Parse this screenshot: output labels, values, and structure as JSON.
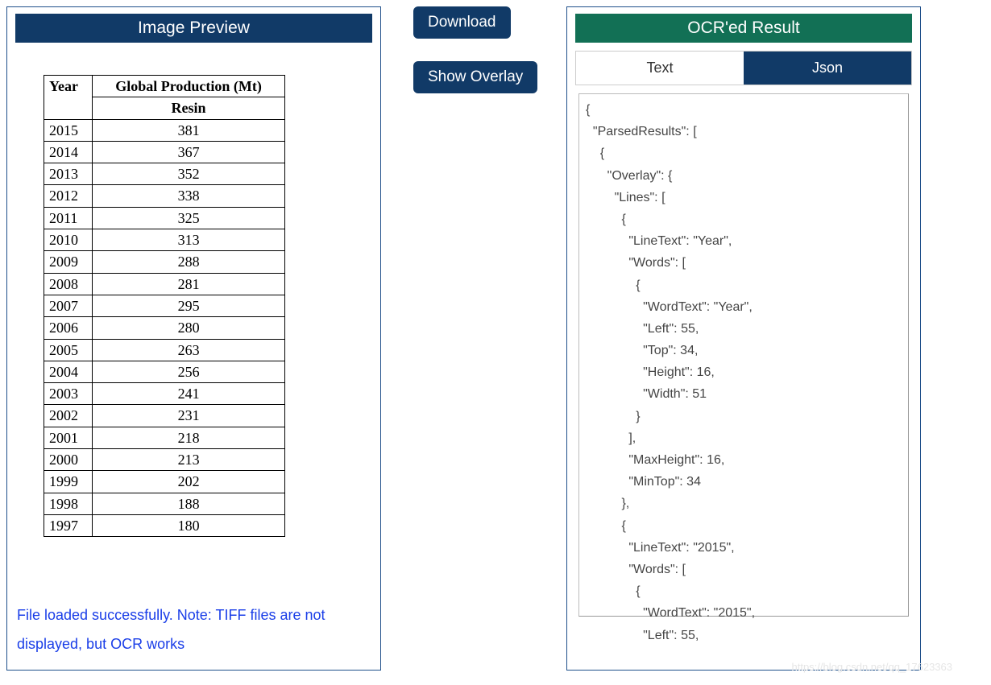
{
  "colors": {
    "panel_border": "#1e4f8a",
    "banner_blue": "#113a67",
    "banner_green": "#127055",
    "button_bg": "#113a67",
    "button_text": "#ffffff",
    "status_text": "#1a3ee8",
    "tab_active_bg": "#113a67",
    "tab_inactive_bg": "#ffffff",
    "json_text": "#454545",
    "watermark": "#e6e6e6"
  },
  "left": {
    "title": "Image Preview",
    "table": {
      "type": "table",
      "header_year": "Year",
      "header_prod": "Global Production (Mt)",
      "subheader": "Resin",
      "rows": [
        [
          "2015",
          "381"
        ],
        [
          "2014",
          "367"
        ],
        [
          "2013",
          "352"
        ],
        [
          "2012",
          "338"
        ],
        [
          "2011",
          "325"
        ],
        [
          "2010",
          "313"
        ],
        [
          "2009",
          "288"
        ],
        [
          "2008",
          "281"
        ],
        [
          "2007",
          "295"
        ],
        [
          "2006",
          "280"
        ],
        [
          "2005",
          "263"
        ],
        [
          "2004",
          "256"
        ],
        [
          "2003",
          "241"
        ],
        [
          "2002",
          "231"
        ],
        [
          "2001",
          "218"
        ],
        [
          "2000",
          "213"
        ],
        [
          "1999",
          "202"
        ],
        [
          "1998",
          "188"
        ],
        [
          "1997",
          "180"
        ]
      ]
    },
    "status": "File loaded successfully. Note: TIFF files are not displayed, but OCR works"
  },
  "mid": {
    "download": "Download",
    "overlay": "Show Overlay"
  },
  "right": {
    "title": "OCR'ed Result",
    "tabs": {
      "text": "Text",
      "json": "Json",
      "active": "json"
    },
    "json": "{\n  \"ParsedResults\": [\n    {\n      \"Overlay\": {\n        \"Lines\": [\n          {\n            \"LineText\": \"Year\",\n            \"Words\": [\n              {\n                \"WordText\": \"Year\",\n                \"Left\": 55,\n                \"Top\": 34,\n                \"Height\": 16,\n                \"Width\": 51\n              }\n            ],\n            \"MaxHeight\": 16,\n            \"MinTop\": 34\n          },\n          {\n            \"LineText\": \"2015\",\n            \"Words\": [\n              {\n                \"WordText\": \"2015\",\n                \"Left\": 55,"
  },
  "watermark": "https://blog.csdn.net/qq_17623363"
}
